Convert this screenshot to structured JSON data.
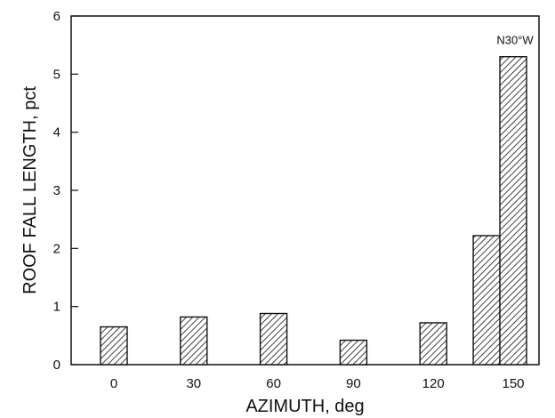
{
  "chart_data": {
    "type": "bar",
    "xlabel": "AZIMUTH, deg",
    "ylabel": "ROOF FALL LENGTH, pct",
    "ylim": [
      0,
      6
    ],
    "yticks": [
      "0",
      "1",
      "2",
      "3",
      "4",
      "5",
      "6"
    ],
    "xticks": [
      "0",
      "30",
      "60",
      "90",
      "120",
      "150"
    ],
    "bars": [
      {
        "azimuth": 0,
        "value": 0.65
      },
      {
        "azimuth": 30,
        "value": 0.82
      },
      {
        "azimuth": 60,
        "value": 0.88
      },
      {
        "azimuth": 90,
        "value": 0.42
      },
      {
        "azimuth": 120,
        "value": 0.72
      },
      {
        "azimuth": 140,
        "value": 2.22
      },
      {
        "azimuth": 150,
        "value": 5.3
      }
    ],
    "annotation": {
      "text": "N30°W",
      "azimuth": 150
    },
    "fill": "diagonal-hatch",
    "grid": false,
    "legend": false
  }
}
